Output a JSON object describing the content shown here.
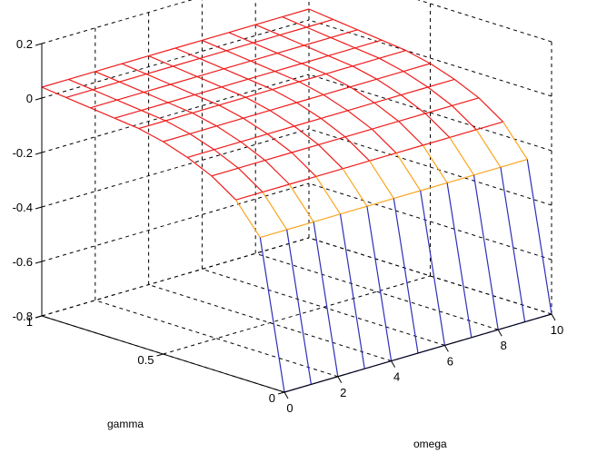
{
  "chart_data": {
    "type": "surface",
    "title": "",
    "xlabel": "omega",
    "ylabel": "gamma",
    "zlabel": "",
    "xlim": [
      0,
      10
    ],
    "ylim": [
      0,
      1
    ],
    "zlim": [
      -0.8,
      0.2
    ],
    "xticks": [
      "0",
      "2",
      "4",
      "6",
      "8",
      "10"
    ],
    "yticks": [
      "0",
      "0.5",
      "1"
    ],
    "zticks": [
      "0.2",
      "0",
      "-0.2",
      "-0.4",
      "-0.6",
      "-0.8"
    ],
    "grid": true,
    "omega": [
      0,
      1,
      2,
      3,
      4,
      5,
      6,
      7,
      8,
      9,
      10
    ],
    "gamma": [
      0,
      0.1,
      0.2,
      0.3,
      0.4,
      0.5,
      0.6,
      0.7,
      0.8,
      0.9,
      1
    ],
    "z_by_gamma": [
      -0.8,
      -0.26,
      -0.15,
      -0.09,
      -0.05,
      -0.02,
      0.0,
      0.01,
      0.02,
      0.03,
      0.04
    ],
    "colormap": [
      "#2e30b8",
      "#fba521",
      "#ef1c1c",
      "#ad1b3d"
    ]
  }
}
